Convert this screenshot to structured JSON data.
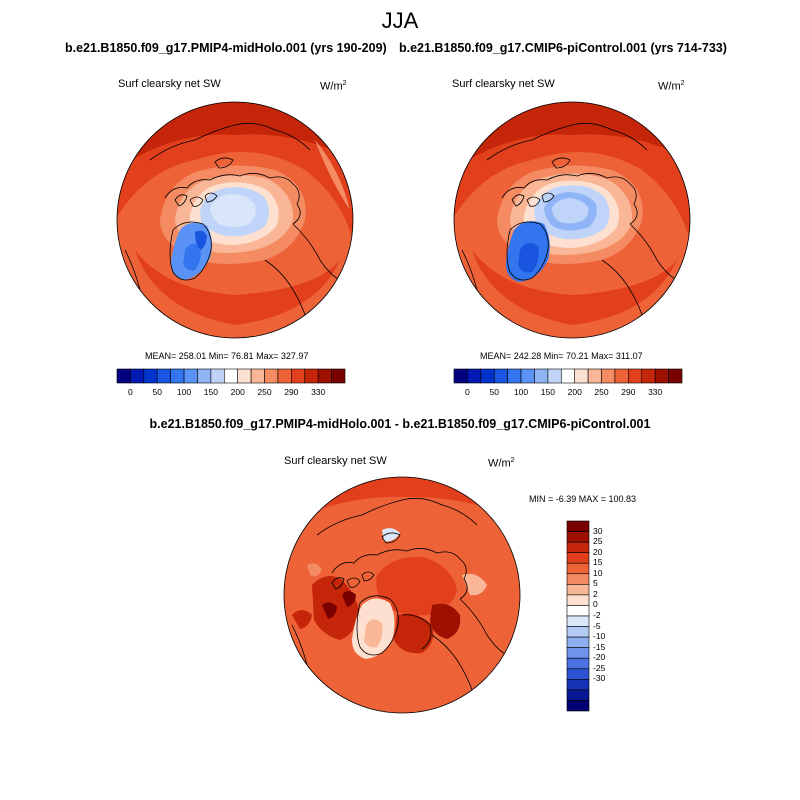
{
  "title": "JJA",
  "panels": [
    {
      "case_title": "b.e21.B1850.f09_g17.PMIP4-midHolo.001 (yrs 190-209)",
      "variable": "Surf clearsky net SW",
      "units": "W/m",
      "units_sup": "2",
      "stats": "MEAN= 258.01  Min=  76.81  Max= 327.97"
    },
    {
      "case_title": "b.e21.B1850.f09_g17.CMIP6-piControl.001 (yrs 714-733)",
      "variable": "Surf clearsky net SW",
      "units": "W/m",
      "units_sup": "2",
      "stats": "MEAN= 242.28  Min=  70.21  Max= 311.07"
    }
  ],
  "abs_colorbar": {
    "colors": [
      "#000080",
      "#0019b3",
      "#0033cc",
      "#1a55e0",
      "#3375ef",
      "#5a93f5",
      "#8fb4f7",
      "#bfd4f8",
      "#ffffff",
      "#fde0d0",
      "#f9b797",
      "#f58b63",
      "#ee6238",
      "#e2401c",
      "#c52508",
      "#9e1000",
      "#7a0000"
    ],
    "ticks": [
      "0",
      "50",
      "100",
      "150",
      "200",
      "250",
      "290",
      "330"
    ]
  },
  "diff": {
    "title": "b.e21.B1850.f09_g17.PMIP4-midHolo.001 - b.e21.B1850.f09_g17.CMIP6-piControl.001",
    "variable": "Surf clearsky net SW",
    "units": "W/m",
    "units_sup": "2",
    "stats": "MIN =  -6.39 MAX = 100.83",
    "colorbar": {
      "colors": [
        "#7a0000",
        "#9e1000",
        "#c52508",
        "#e2401c",
        "#ee6238",
        "#f58b63",
        "#f9b797",
        "#fde0d0",
        "#ffffff",
        "#d8e6f8",
        "#b3cbf5",
        "#8fb0f0",
        "#6e93ea",
        "#4a72e2",
        "#2d52d4",
        "#1633b8",
        "#061893",
        "#000070"
      ],
      "ticks": [
        "30",
        "25",
        "20",
        "15",
        "10",
        "5",
        "2",
        "0",
        "-2",
        "-5",
        "-10",
        "-15",
        "-20",
        "-25",
        "-30"
      ]
    }
  },
  "legend_colors": {
    "land_outline": "#000000",
    "warm_field": "#ee6238",
    "ice_field": "#5a93f5"
  }
}
